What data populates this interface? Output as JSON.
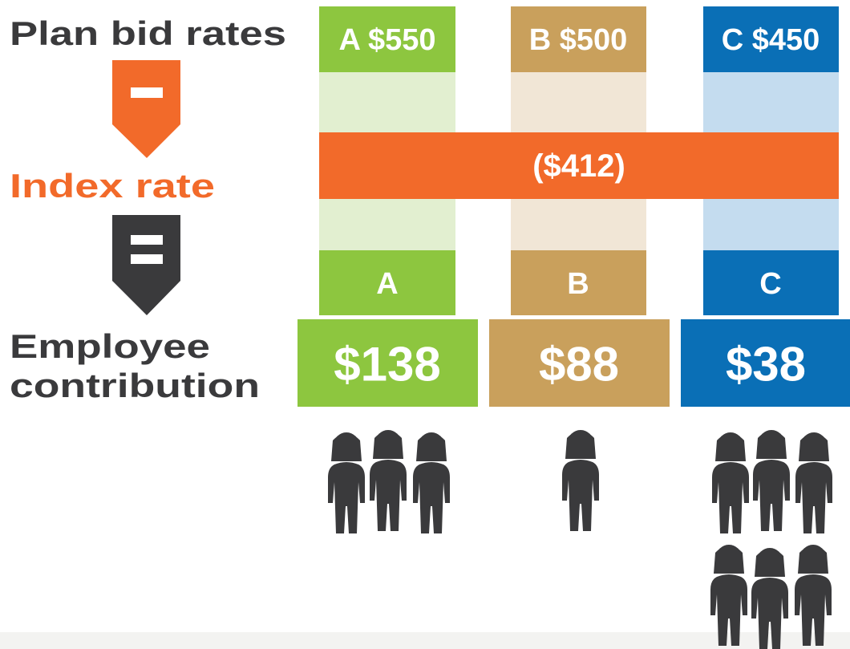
{
  "labels": {
    "plan_bid_rates": "Plan bid rates",
    "index_rate": "Index rate",
    "employee_contribution": [
      "Employee",
      "contribution"
    ]
  },
  "index_rate_value": "($412)",
  "plans": [
    {
      "bid": "A $550",
      "letter": "A",
      "contribution": "$138"
    },
    {
      "bid": "B $500",
      "letter": "B",
      "contribution": "$88"
    },
    {
      "bid": "C $450",
      "letter": "C",
      "contribution": "$38"
    }
  ]
}
